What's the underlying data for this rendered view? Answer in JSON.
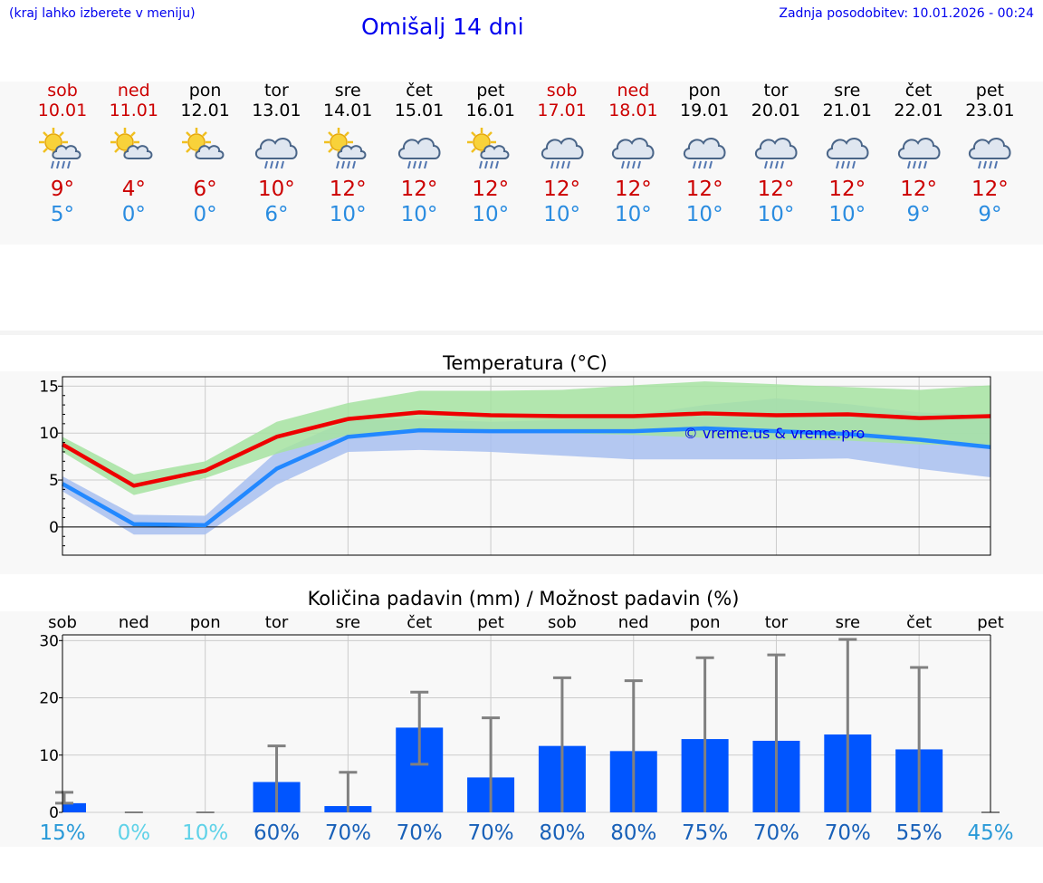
{
  "header": {
    "hint": "(kraj lahko izberete v meniju)",
    "title": "Omišalj 14 dni",
    "updated": "Zadnja posodobitev: 10.01.2026 - 00:24"
  },
  "days": [
    {
      "name": "sob",
      "date": "10.01",
      "weekend": true,
      "icon": "sun-cloud-rain-icon",
      "tmax": "9°",
      "tmin": "5°"
    },
    {
      "name": "ned",
      "date": "11.01",
      "weekend": true,
      "icon": "sun-cloud-icon",
      "tmax": "4°",
      "tmin": "0°"
    },
    {
      "name": "pon",
      "date": "12.01",
      "weekend": false,
      "icon": "sun-cloud-icon",
      "tmax": "6°",
      "tmin": "0°"
    },
    {
      "name": "tor",
      "date": "13.01",
      "weekend": false,
      "icon": "cloud-rain-icon",
      "tmax": "10°",
      "tmin": "6°"
    },
    {
      "name": "sre",
      "date": "14.01",
      "weekend": false,
      "icon": "sun-cloud-rain-icon",
      "tmax": "12°",
      "tmin": "10°"
    },
    {
      "name": "čet",
      "date": "15.01",
      "weekend": false,
      "icon": "cloud-rain-icon",
      "tmax": "12°",
      "tmin": "10°"
    },
    {
      "name": "pet",
      "date": "16.01",
      "weekend": false,
      "icon": "sun-cloud-rain-icon",
      "tmax": "12°",
      "tmin": "10°"
    },
    {
      "name": "sob",
      "date": "17.01",
      "weekend": true,
      "icon": "cloud-rain-icon",
      "tmax": "12°",
      "tmin": "10°"
    },
    {
      "name": "ned",
      "date": "18.01",
      "weekend": true,
      "icon": "cloud-rain-icon",
      "tmax": "12°",
      "tmin": "10°"
    },
    {
      "name": "pon",
      "date": "19.01",
      "weekend": false,
      "icon": "cloud-rain-icon",
      "tmax": "12°",
      "tmin": "10°"
    },
    {
      "name": "tor",
      "date": "20.01",
      "weekend": false,
      "icon": "cloud-rain-icon",
      "tmax": "12°",
      "tmin": "10°"
    },
    {
      "name": "sre",
      "date": "21.01",
      "weekend": false,
      "icon": "cloud-rain-icon",
      "tmax": "12°",
      "tmin": "10°"
    },
    {
      "name": "čet",
      "date": "22.01",
      "weekend": false,
      "icon": "cloud-rain-icon",
      "tmax": "12°",
      "tmin": "9°"
    },
    {
      "name": "pet",
      "date": "23.01",
      "weekend": false,
      "icon": "cloud-rain-icon",
      "tmax": "12°",
      "tmin": "9°"
    }
  ],
  "colors": {
    "max_line": "#ee0000",
    "min_line": "#2288ff",
    "max_band": "#a6e3a1",
    "min_band": "#a8bff0",
    "bar": "#0055ff",
    "error_bar": "#808080",
    "watermark": "#0000ee"
  },
  "chart_data": [
    {
      "type": "line",
      "title": "Temperatura (°C)",
      "ylim": [
        -3,
        16
      ],
      "yticks": [
        0,
        5,
        10,
        15
      ],
      "watermark": "© vreme.us & vreme.pro",
      "x": [
        0,
        1,
        2,
        3,
        4,
        5,
        6,
        7,
        8,
        9,
        10,
        11,
        12,
        13
      ],
      "series": [
        {
          "name": "max",
          "values": [
            8.8,
            4.4,
            6.0,
            9.6,
            11.5,
            12.2,
            11.9,
            11.8,
            11.8,
            12.1,
            11.9,
            12.0,
            11.6,
            11.8
          ],
          "band_low": [
            8.0,
            3.4,
            5.2,
            7.8,
            9.8,
            10.4,
            10.3,
            10.0,
            9.8,
            9.5,
            9.3,
            9.2,
            8.8,
            8.6
          ],
          "band_high": [
            9.6,
            5.6,
            7.0,
            11.2,
            13.2,
            14.5,
            14.5,
            14.6,
            15.1,
            15.5,
            15.2,
            14.9,
            14.6,
            15.1
          ]
        },
        {
          "name": "min",
          "values": [
            4.6,
            0.3,
            0.2,
            6.2,
            9.6,
            10.3,
            10.2,
            10.2,
            10.2,
            10.5,
            10.2,
            9.9,
            9.3,
            8.5
          ],
          "band_low": [
            3.8,
            -0.8,
            -0.8,
            4.5,
            8.0,
            8.2,
            8.0,
            7.6,
            7.2,
            7.2,
            7.2,
            7.3,
            6.2,
            5.3
          ],
          "band_high": [
            5.4,
            1.3,
            1.2,
            8.0,
            11.4,
            11.5,
            11.2,
            11.4,
            11.9,
            13.0,
            13.7,
            13.1,
            12.2,
            11.9
          ]
        }
      ]
    },
    {
      "type": "bar",
      "title": "Količina padavin (mm) / Možnost padavin (%)",
      "ylim": [
        0,
        31
      ],
      "yticks": [
        0,
        10,
        20,
        30
      ],
      "categories": [
        "sob",
        "ned",
        "pon",
        "tor",
        "sre",
        "čet",
        "pet",
        "sob",
        "ned",
        "pon",
        "tor",
        "sre",
        "čet",
        "pet"
      ],
      "values": [
        1.6,
        0,
        0,
        5.3,
        1.1,
        14.8,
        6.1,
        11.6,
        10.7,
        12.8,
        12.5,
        13.6,
        11.0,
        0
      ],
      "err_low": [
        1.6,
        0,
        0,
        0,
        0,
        8.4,
        0,
        0,
        0,
        0,
        0,
        0,
        0,
        0
      ],
      "err_high": [
        3.5,
        0,
        0,
        11.6,
        7.0,
        21.0,
        16.5,
        23.5,
        23.0,
        27.0,
        27.5,
        30.2,
        25.3,
        0
      ],
      "probability": [
        "15%",
        "0%",
        "10%",
        "60%",
        "70%",
        "70%",
        "70%",
        "80%",
        "80%",
        "75%",
        "70%",
        "70%",
        "55%",
        "45%"
      ],
      "prob_colors": [
        "#2a9ad8",
        "#5fd2e8",
        "#5fd2e8",
        "#1860b8",
        "#1860b8",
        "#1860b8",
        "#1860b8",
        "#1860b8",
        "#1860b8",
        "#1860b8",
        "#1860b8",
        "#1860b8",
        "#1860b8",
        "#2a9ad8"
      ]
    }
  ]
}
